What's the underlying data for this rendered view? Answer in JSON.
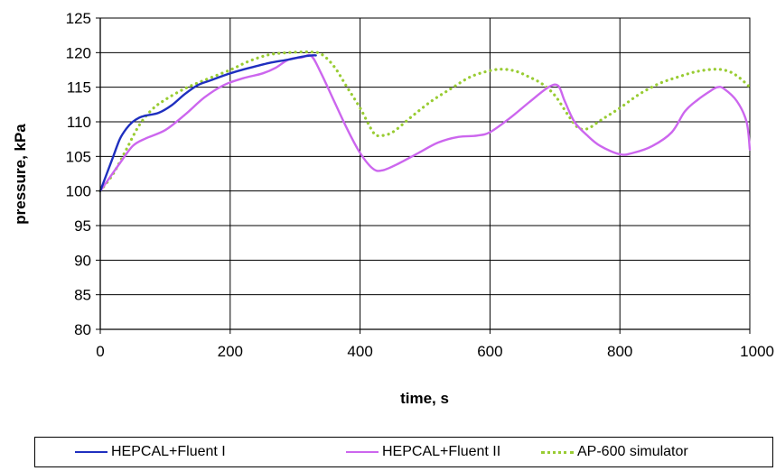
{
  "chart_data": {
    "type": "line",
    "title": "",
    "xlabel": "time, s",
    "ylabel": "pressure, kPa",
    "xlim": [
      0,
      1000
    ],
    "ylim": [
      80,
      125
    ],
    "x_ticks": [
      0,
      200,
      400,
      600,
      800,
      1000
    ],
    "y_ticks": [
      80,
      85,
      90,
      95,
      100,
      105,
      110,
      115,
      120,
      125
    ],
    "x_tick_labels": [
      "0",
      "200",
      "400",
      "600",
      "800",
      "1000"
    ],
    "y_tick_labels": [
      "80",
      "85",
      "90",
      "95",
      "100",
      "105",
      "110",
      "115",
      "120",
      "125"
    ],
    "grid": true,
    "plot_background": "#ffffff",
    "grid_color": "#000000",
    "legend_position": "bottom",
    "series": [
      {
        "name": "HEPCAL+Fluent I",
        "color": "#1f2fbf",
        "style": "solid",
        "points": [
          [
            0,
            100
          ],
          [
            10,
            102.5
          ],
          [
            20,
            105
          ],
          [
            30,
            107.5
          ],
          [
            40,
            109
          ],
          [
            50,
            110
          ],
          [
            60,
            110.6
          ],
          [
            70,
            110.9
          ],
          [
            90,
            111.3
          ],
          [
            110,
            112.4
          ],
          [
            130,
            114
          ],
          [
            150,
            115.3
          ],
          [
            170,
            116
          ],
          [
            200,
            117
          ],
          [
            230,
            117.8
          ],
          [
            260,
            118.5
          ],
          [
            290,
            119
          ],
          [
            310,
            119.4
          ],
          [
            325,
            119.6
          ],
          [
            332,
            119.6
          ]
        ]
      },
      {
        "name": "HEPCAL+Fluent II",
        "color": "#cc66ee",
        "style": "solid",
        "points": [
          [
            0,
            100
          ],
          [
            15,
            102
          ],
          [
            30,
            104
          ],
          [
            50,
            106.5
          ],
          [
            70,
            107.6
          ],
          [
            100,
            108.8
          ],
          [
            130,
            111
          ],
          [
            160,
            113.5
          ],
          [
            190,
            115.3
          ],
          [
            220,
            116.3
          ],
          [
            250,
            117
          ],
          [
            270,
            117.8
          ],
          [
            290,
            119
          ],
          [
            310,
            119.3
          ],
          [
            325,
            119.5
          ],
          [
            340,
            117
          ],
          [
            360,
            113
          ],
          [
            380,
            109
          ],
          [
            400,
            105.5
          ],
          [
            420,
            103.2
          ],
          [
            435,
            103
          ],
          [
            460,
            104
          ],
          [
            490,
            105.5
          ],
          [
            520,
            107
          ],
          [
            550,
            107.8
          ],
          [
            580,
            108
          ],
          [
            600,
            108.5
          ],
          [
            630,
            110.5
          ],
          [
            660,
            112.8
          ],
          [
            690,
            115
          ],
          [
            705,
            115.2
          ],
          [
            715,
            113
          ],
          [
            730,
            110
          ],
          [
            750,
            108
          ],
          [
            770,
            106.5
          ],
          [
            800,
            105.3
          ],
          [
            820,
            105.5
          ],
          [
            850,
            106.5
          ],
          [
            880,
            108.5
          ],
          [
            900,
            111.5
          ],
          [
            920,
            113.2
          ],
          [
            940,
            114.5
          ],
          [
            950,
            115
          ],
          [
            960,
            114.8
          ],
          [
            980,
            113
          ],
          [
            995,
            110
          ],
          [
            1000,
            106
          ]
        ]
      },
      {
        "name": "AP-600 simulator",
        "color": "#99cc33",
        "style": "dotted",
        "points": [
          [
            0,
            100
          ],
          [
            20,
            102.5
          ],
          [
            40,
            106
          ],
          [
            60,
            109.5
          ],
          [
            80,
            111.8
          ],
          [
            100,
            113.2
          ],
          [
            130,
            114.8
          ],
          [
            160,
            116
          ],
          [
            200,
            117.5
          ],
          [
            230,
            118.8
          ],
          [
            260,
            119.7
          ],
          [
            290,
            120
          ],
          [
            320,
            120.1
          ],
          [
            340,
            119.8
          ],
          [
            360,
            118
          ],
          [
            380,
            115
          ],
          [
            400,
            112
          ],
          [
            420,
            108.5
          ],
          [
            430,
            108
          ],
          [
            450,
            108.5
          ],
          [
            480,
            110.8
          ],
          [
            510,
            113
          ],
          [
            540,
            114.8
          ],
          [
            570,
            116.5
          ],
          [
            600,
            117.4
          ],
          [
            620,
            117.6
          ],
          [
            640,
            117.3
          ],
          [
            660,
            116.5
          ],
          [
            680,
            115.5
          ],
          [
            700,
            113.8
          ],
          [
            720,
            111
          ],
          [
            735,
            109.2
          ],
          [
            750,
            109
          ],
          [
            770,
            110.2
          ],
          [
            800,
            112
          ],
          [
            830,
            114
          ],
          [
            860,
            115.5
          ],
          [
            890,
            116.5
          ],
          [
            920,
            117.3
          ],
          [
            950,
            117.6
          ],
          [
            970,
            117.2
          ],
          [
            985,
            116.3
          ],
          [
            1000,
            115
          ]
        ]
      }
    ]
  }
}
